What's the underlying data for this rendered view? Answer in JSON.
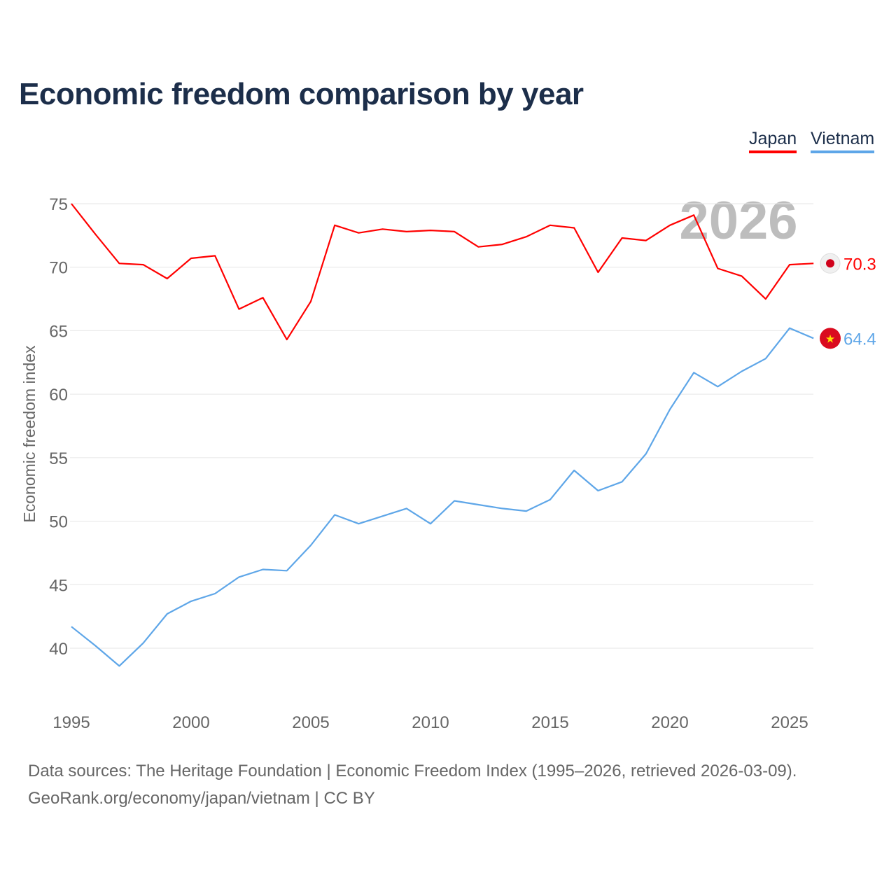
{
  "title": "Economic freedom comparison by year",
  "source_line1": "Data sources: The Heritage Foundation | Economic Freedom Index (1995–2026, retrieved 2026-03-09).",
  "source_line2": "GeoRank.org/economy/japan/vietnam | CC BY",
  "chart_data": {
    "type": "line",
    "title": "Economic freedom comparison by year",
    "xlabel": "",
    "ylabel": "Economic freedom index",
    "xlim": [
      1995,
      2026
    ],
    "ylim": [
      36,
      77
    ],
    "xticks": [
      1995,
      2000,
      2005,
      2010,
      2015,
      2020,
      2025
    ],
    "yticks": [
      40,
      45,
      50,
      55,
      60,
      65,
      70,
      75
    ],
    "grid": true,
    "legend_position": "top-right",
    "year_watermark": "2026",
    "x": [
      1995,
      1996,
      1997,
      1998,
      1999,
      2000,
      2001,
      2002,
      2003,
      2004,
      2005,
      2006,
      2007,
      2008,
      2009,
      2010,
      2011,
      2012,
      2013,
      2014,
      2015,
      2016,
      2017,
      2018,
      2019,
      2020,
      2021,
      2022,
      2023,
      2024,
      2025,
      2026
    ],
    "series": [
      {
        "name": "Japan",
        "color": "#ff0000",
        "end_label": "70.3",
        "values": [
          75.0,
          72.6,
          70.3,
          70.2,
          69.1,
          70.7,
          70.9,
          66.7,
          67.6,
          64.3,
          67.3,
          73.3,
          72.7,
          73.0,
          72.8,
          72.9,
          72.8,
          71.6,
          71.8,
          72.4,
          73.3,
          73.1,
          69.6,
          72.3,
          72.1,
          73.3,
          74.1,
          69.9,
          69.3,
          67.5,
          70.2,
          70.3
        ]
      },
      {
        "name": "Vietnam",
        "color": "#5ea6e8",
        "end_label": "64.4",
        "values": [
          41.7,
          40.2,
          38.6,
          40.4,
          42.7,
          43.7,
          44.3,
          45.6,
          46.2,
          46.1,
          48.1,
          50.5,
          49.8,
          50.4,
          51.0,
          49.8,
          51.6,
          51.3,
          51.0,
          50.8,
          51.7,
          54.0,
          52.4,
          53.1,
          55.3,
          58.8,
          61.7,
          60.6,
          61.8,
          62.8,
          65.2,
          64.4
        ]
      }
    ]
  }
}
